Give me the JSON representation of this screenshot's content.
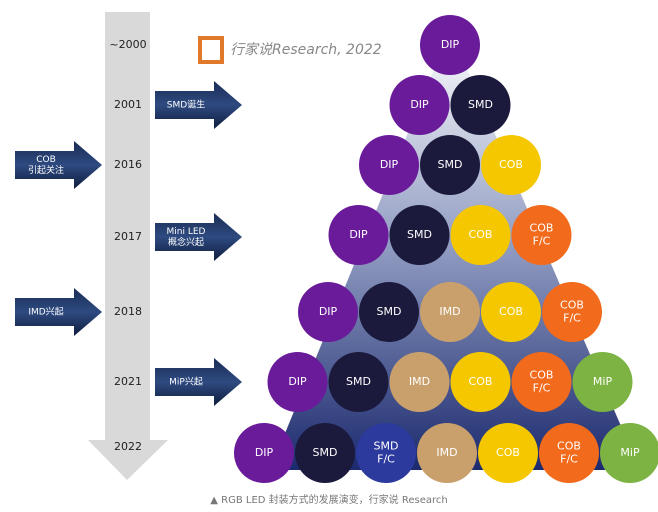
{
  "logo": {
    "text": "行家说Research, 2022"
  },
  "timeline": [
    {
      "year": "~2000"
    },
    {
      "year": "2001"
    },
    {
      "year": "2016"
    },
    {
      "year": "2017"
    },
    {
      "year": "2018"
    },
    {
      "year": "2021"
    },
    {
      "year": "2022"
    }
  ],
  "events": [
    {
      "lines": [
        "SMD诞生"
      ],
      "side": "right",
      "at": 1
    },
    {
      "lines": [
        "COB",
        "引起关注"
      ],
      "side": "left",
      "at": 2
    },
    {
      "lines": [
        "Mini LED",
        "概念兴起"
      ],
      "side": "right",
      "at": 3
    },
    {
      "lines": [
        "IMD兴起"
      ],
      "side": "left",
      "at": 4
    },
    {
      "lines": [
        "MiP兴起"
      ],
      "side": "right",
      "at": 5
    }
  ],
  "colors": {
    "DIP": "#6a1b9a",
    "SMD": "#1b1a3d",
    "SMD F/C": "#2c3a9e",
    "IMD": "#c9a06c",
    "COB": "#f5c700",
    "COB F/C": "#f26a1c",
    "MiP": "#7cb342"
  },
  "rows": [
    [
      [
        "DIP"
      ]
    ],
    [
      [
        "DIP"
      ],
      [
        "SMD"
      ]
    ],
    [
      [
        "DIP"
      ],
      [
        "SMD"
      ],
      [
        "COB"
      ]
    ],
    [
      [
        "DIP"
      ],
      [
        "SMD"
      ],
      [
        "COB"
      ],
      [
        "COB",
        "F/C"
      ]
    ],
    [
      [
        "DIP"
      ],
      [
        "SMD"
      ],
      [
        "IMD"
      ],
      [
        "COB"
      ],
      [
        "COB",
        "F/C"
      ]
    ],
    [
      [
        "DIP"
      ],
      [
        "SMD"
      ],
      [
        "IMD"
      ],
      [
        "COB"
      ],
      [
        "COB",
        "F/C"
      ],
      [
        "MiP"
      ]
    ],
    [
      [
        "DIP"
      ],
      [
        "SMD"
      ],
      [
        "SMD",
        "F/C"
      ],
      [
        "IMD"
      ],
      [
        "COB"
      ],
      [
        "COB",
        "F/C"
      ],
      [
        "MiP"
      ]
    ]
  ],
  "caption": "▲  RGB LED 封装方式的发展演变，行家说 Research"
}
